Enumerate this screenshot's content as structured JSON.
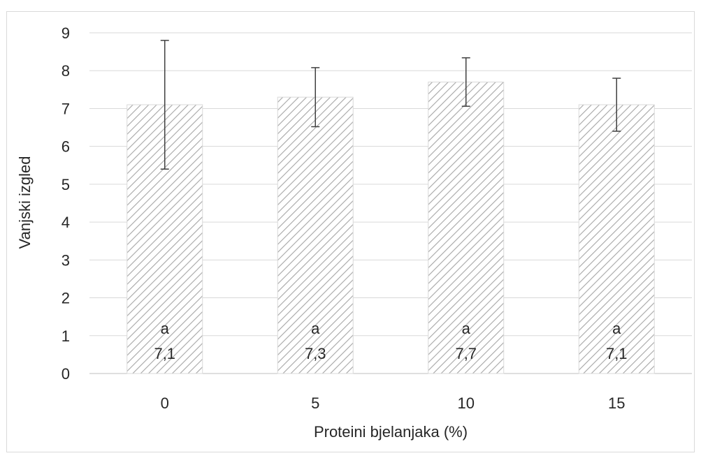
{
  "chart_data": {
    "type": "bar",
    "title": "",
    "xlabel": "Proteini bjelanjaka (%)",
    "ylabel": "Vanjski izgled",
    "categories": [
      "0",
      "5",
      "10",
      "15"
    ],
    "values": [
      7.1,
      7.3,
      7.7,
      7.1
    ],
    "error_bars": [
      1.7,
      0.78,
      0.64,
      0.7
    ],
    "letters": [
      "a",
      "a",
      "a",
      "a"
    ],
    "value_labels": [
      "7,1",
      "7,3",
      "7,7",
      "7,1"
    ],
    "ylim": [
      0,
      9
    ],
    "yticks": [
      "0",
      "1",
      "2",
      "3",
      "4",
      "5",
      "6",
      "7",
      "8",
      "9"
    ],
    "grid": true,
    "legend": "none",
    "bar_pattern": "diagonal-hatch",
    "colors": {
      "bar_fill": "#ffffff",
      "hatch": "#a6a6a6",
      "bar_border": "#d9d9d9",
      "grid": "#d9d9d9",
      "error_bar": "#404040",
      "text": "#262626"
    }
  }
}
